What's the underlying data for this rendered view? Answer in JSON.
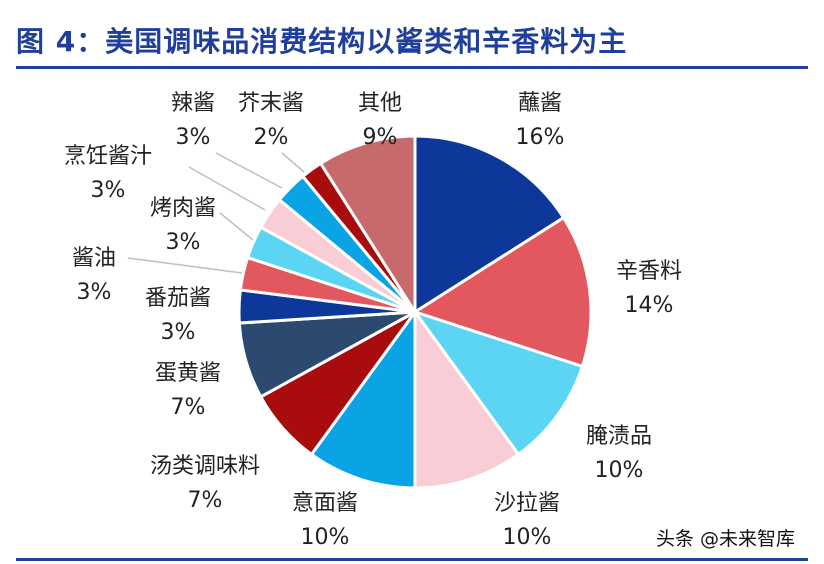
{
  "title": "图 4：美国调味品消费结构以酱类和辛香料为主",
  "watermark": "头条 @未来智库",
  "colors": {
    "title": "#1f3f9a",
    "rule": "#1f3f9a",
    "label_text": "#222222",
    "slice_border": "#ffffff"
  },
  "chart_data": {
    "type": "pie",
    "title": "",
    "start": "12 o'clock",
    "direction": "clockwise",
    "slices": [
      {
        "label": "蘸酱",
        "value": 16,
        "value_label": "16%",
        "color": "#0d3899"
      },
      {
        "label": "辛香料",
        "value": 14,
        "value_label": "14%",
        "color": "#e2585e"
      },
      {
        "label": "腌渍品",
        "value": 10,
        "value_label": "10%",
        "color": "#5cd5f5"
      },
      {
        "label": "沙拉酱",
        "value": 10,
        "value_label": "10%",
        "color": "#f8cdd6"
      },
      {
        "label": "意面酱",
        "value": 10,
        "value_label": "10%",
        "color": "#0aa4e5"
      },
      {
        "label": "汤类调味料",
        "value": 7,
        "value_label": "7%",
        "color": "#a80c0c"
      },
      {
        "label": "蛋黄酱",
        "value": 7,
        "value_label": "7%",
        "color": "#2c4a70"
      },
      {
        "label": "番茄酱",
        "value": 3,
        "value_label": "3%",
        "color": "#0d3899"
      },
      {
        "label": "酱油",
        "value": 3,
        "value_label": "3%",
        "color": "#e2585e"
      },
      {
        "label": "烤肉酱",
        "value": 3,
        "value_label": "3%",
        "color": "#5cd5f5"
      },
      {
        "label": "烹饪酱汁",
        "value": 3,
        "value_label": "3%",
        "color": "#f8cdd6"
      },
      {
        "label": "辣酱",
        "value": 3,
        "value_label": "3%",
        "color": "#0aa4e5"
      },
      {
        "label": "芥末酱",
        "value": 2,
        "value_label": "2%",
        "color": "#a80c0c"
      },
      {
        "label": "其他",
        "value": 9,
        "value_label": "9%",
        "color": "#c66a6c"
      }
    ]
  }
}
